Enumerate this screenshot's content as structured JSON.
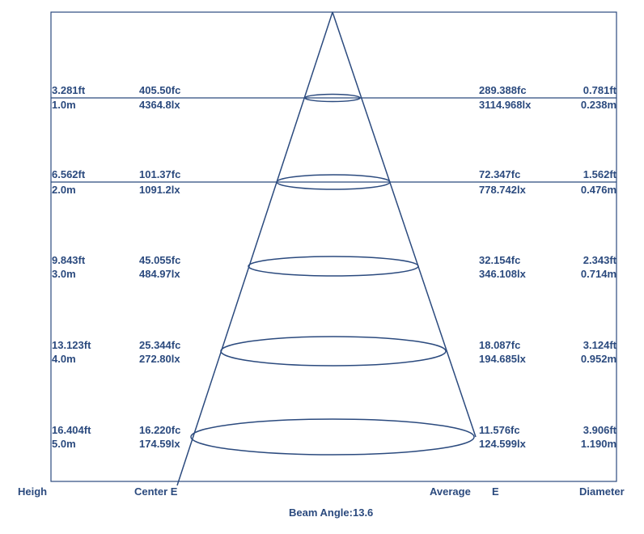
{
  "rows": [
    {
      "height_ft": "3.281ft",
      "height_m": "1.0m",
      "center_fc": "405.50fc",
      "center_lx": "4364.8lx",
      "avg_fc": "289.388fc",
      "avg_lx": "3114.968lx",
      "diameter_ft": "0.781ft",
      "diameter_m": "0.238m"
    },
    {
      "height_ft": "6.562ft",
      "height_m": "2.0m",
      "center_fc": "101.37fc",
      "center_lx": "1091.2lx",
      "avg_fc": "72.347fc",
      "avg_lx": "778.742lx",
      "diameter_ft": "1.562ft",
      "diameter_m": "0.476m"
    },
    {
      "height_ft": "9.843ft",
      "height_m": "3.0m",
      "center_fc": "45.055fc",
      "center_lx": "484.97lx",
      "avg_fc": "32.154fc",
      "avg_lx": "346.108lx",
      "diameter_ft": "2.343ft",
      "diameter_m": "0.714m"
    },
    {
      "height_ft": "13.123ft",
      "height_m": "4.0m",
      "center_fc": "25.344fc",
      "center_lx": "272.80lx",
      "avg_fc": "18.087fc",
      "avg_lx": "194.685lx",
      "diameter_ft": "3.124ft",
      "diameter_m": "0.952m"
    },
    {
      "height_ft": "16.404ft",
      "height_m": "5.0m",
      "center_fc": "16.220fc",
      "center_lx": "174.59lx",
      "avg_fc": "11.576fc",
      "avg_lx": "124.599lx",
      "diameter_ft": "3.906ft",
      "diameter_m": "1.190m"
    }
  ],
  "footer": {
    "height_label": "Heigh",
    "center_label": "Center E",
    "average_label": "Average",
    "average_e_label": "E",
    "diameter_label": "Diameter",
    "beam_angle": "Beam Angle:13.6"
  },
  "colors": {
    "line": "#2b4a7e",
    "text": "#2b4a7e"
  }
}
